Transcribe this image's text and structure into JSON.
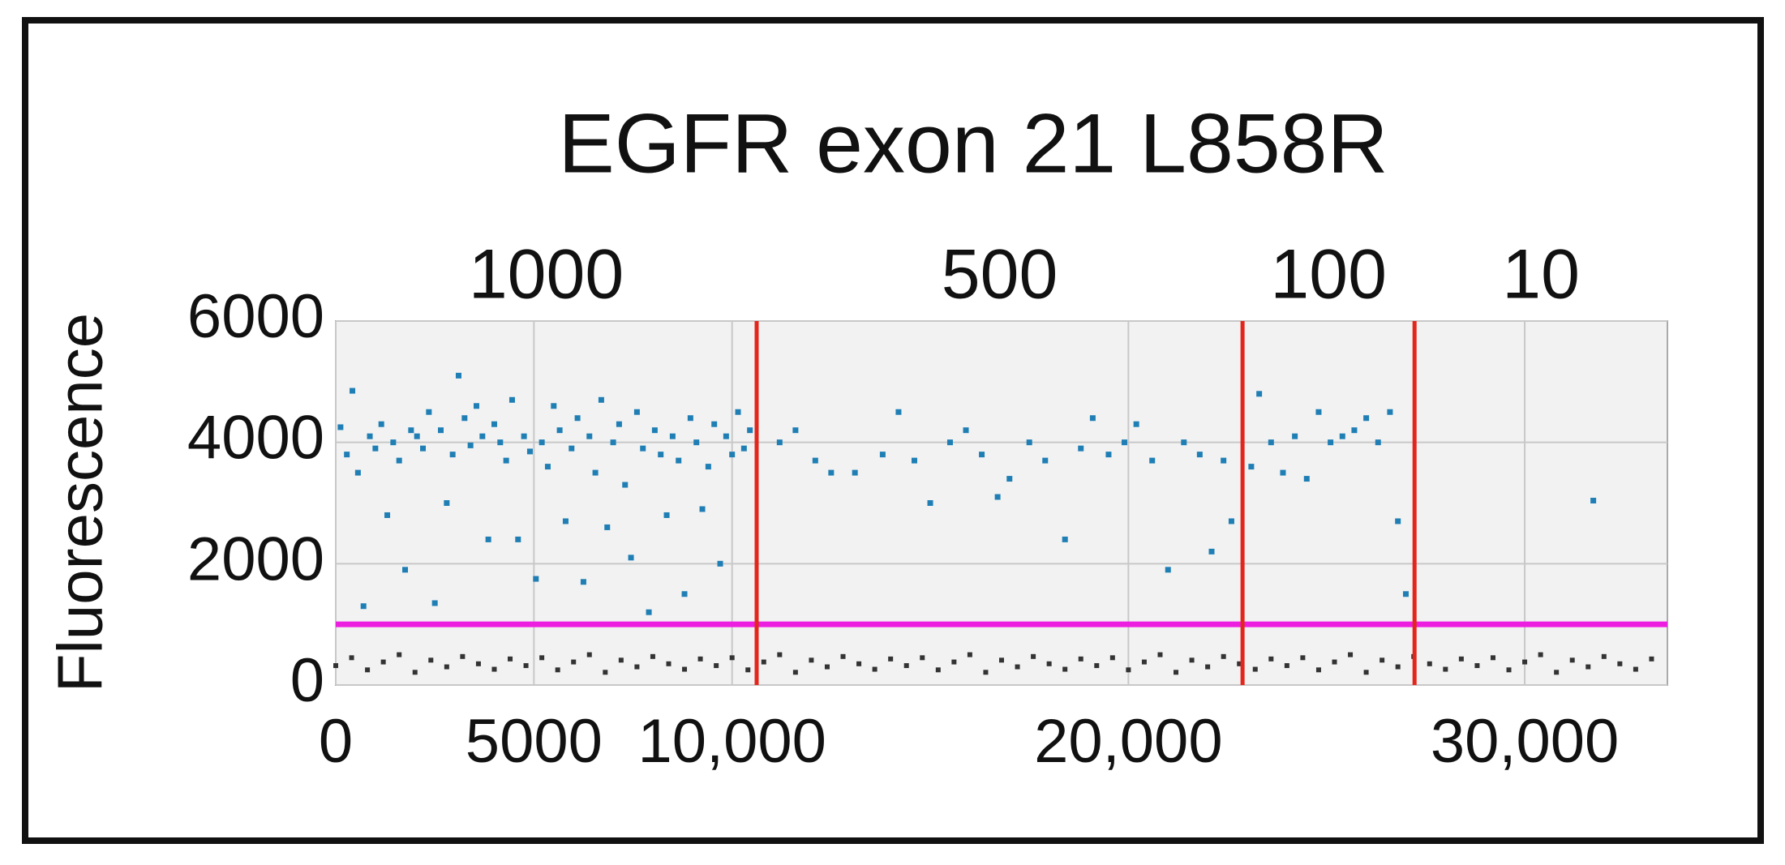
{
  "chart_data": {
    "type": "scatter",
    "title": "EGFR exon 21 L858R",
    "y_label": "Fluorescence",
    "xlim": [
      0,
      33600
    ],
    "ylim": [
      0,
      6000
    ],
    "xticks": [
      0,
      5000,
      {
        "value": 10000,
        "label": "10,000"
      },
      {
        "value": 20000,
        "label": "20,000"
      },
      {
        "value": 30000,
        "label": "30,000"
      }
    ],
    "yticks": [
      0,
      2000,
      4000,
      6000
    ],
    "grid": true,
    "regions": [
      "1000",
      "500",
      "100",
      "10"
    ],
    "dividers": [
      10620,
      22880,
      27220
    ],
    "divider_color": "#e3261c",
    "threshold": 1000,
    "threshold_color": "#ec1fe0",
    "series": [
      {
        "color": "#1f7fb5",
        "x": [
          120,
          280,
          420,
          560,
          700,
          860,
          1000,
          1150,
          1300,
          1450,
          1600,
          1750,
          1900,
          2050,
          2200,
          2350,
          2500,
          2650,
          2800,
          2950,
          3100,
          3250,
          3400,
          3550,
          3700,
          3850,
          4000,
          4150,
          4300,
          4450,
          4600,
          4750,
          4900,
          5050,
          5200,
          5350,
          5500,
          5650,
          5800,
          5950,
          6100,
          6250,
          6400,
          6550,
          6700,
          6850,
          7000,
          7150,
          7300,
          7450,
          7600,
          7750,
          7900,
          8050,
          8200,
          8350,
          8500,
          8650,
          8800,
          8950,
          9100,
          9250,
          9400,
          9550,
          9700,
          9850,
          10000,
          10150,
          10300,
          10450,
          11200,
          11600,
          12100,
          12500,
          13100,
          13800,
          14200,
          14600,
          15000,
          15500,
          15900,
          16300,
          16700,
          17000,
          17500,
          17900,
          18400,
          18800,
          19100,
          19500,
          19900,
          20200,
          20600,
          21000,
          21400,
          21800,
          22100,
          22400,
          22600,
          23100,
          23300,
          23600,
          23900,
          24200,
          24500,
          24800,
          25100,
          25400,
          25700,
          26000,
          26300,
          26600,
          26800,
          27000,
          31730
        ],
        "values": [
          4250,
          3800,
          4850,
          3500,
          1300,
          4100,
          3900,
          4300,
          2800,
          4000,
          3700,
          1900,
          4200,
          4100,
          3900,
          4500,
          1350,
          4200,
          3000,
          3800,
          5100,
          4400,
          3950,
          4600,
          4100,
          2400,
          4300,
          4000,
          3700,
          4700,
          2400,
          4100,
          3850,
          1750,
          4000,
          3600,
          4600,
          4200,
          2700,
          3900,
          4400,
          1700,
          4100,
          3500,
          4700,
          2600,
          4000,
          4300,
          3300,
          2100,
          4500,
          3900,
          1200,
          4200,
          3800,
          2800,
          4100,
          3700,
          1500,
          4400,
          4000,
          2900,
          3600,
          4300,
          2000,
          4100,
          3800,
          4500,
          3900,
          4200,
          4000,
          4200,
          3700,
          3500,
          3500,
          3800,
          4500,
          3700,
          3000,
          4000,
          4200,
          3800,
          3100,
          3400,
          4000,
          3700,
          2400,
          3900,
          4400,
          3800,
          4000,
          4300,
          3700,
          1900,
          4000,
          3800,
          2200,
          3700,
          2700,
          3600,
          4800,
          4000,
          3500,
          4100,
          3400,
          4500,
          4000,
          4100,
          4200,
          4400,
          4000,
          4500,
          2700,
          1500,
          3040
        ]
      },
      {
        "color": "#333333",
        "x": [
          0,
          400,
          800,
          1200,
          1600,
          2000,
          2400,
          2800,
          3200,
          3600,
          4000,
          4400,
          4800,
          5200,
          5600,
          6000,
          6400,
          6800,
          7200,
          7600,
          8000,
          8400,
          8800,
          9200,
          9600,
          10000,
          10400,
          10800,
          11200,
          11600,
          12000,
          12400,
          12800,
          13200,
          13600,
          14000,
          14400,
          14800,
          15200,
          15600,
          16000,
          16400,
          16800,
          17200,
          17600,
          18000,
          18400,
          18800,
          19200,
          19600,
          20000,
          20400,
          20800,
          21200,
          21600,
          22000,
          22400,
          22800,
          23200,
          23600,
          24000,
          24400,
          24800,
          25200,
          25600,
          26000,
          26400,
          26800,
          27200,
          27600,
          28000,
          28400,
          28800,
          29200,
          29600,
          30000,
          30400,
          30800,
          31200,
          31600,
          32000,
          32400,
          32800,
          33200
        ],
        "values": [
          320,
          450,
          250,
          380,
          500,
          210,
          410,
          300,
          470,
          350,
          260,
          430,
          320,
          450,
          250,
          380,
          500,
          210,
          410,
          300,
          470,
          350,
          260,
          430,
          320,
          450,
          250,
          380,
          500,
          210,
          410,
          300,
          470,
          350,
          260,
          430,
          320,
          450,
          250,
          380,
          500,
          210,
          410,
          300,
          470,
          350,
          260,
          430,
          320,
          450,
          250,
          380,
          500,
          210,
          410,
          300,
          470,
          350,
          260,
          430,
          320,
          450,
          250,
          380,
          500,
          210,
          410,
          300,
          470,
          350,
          260,
          430,
          320,
          450,
          250,
          380,
          500,
          210,
          410,
          300,
          470,
          350,
          260,
          430
        ]
      }
    ]
  }
}
